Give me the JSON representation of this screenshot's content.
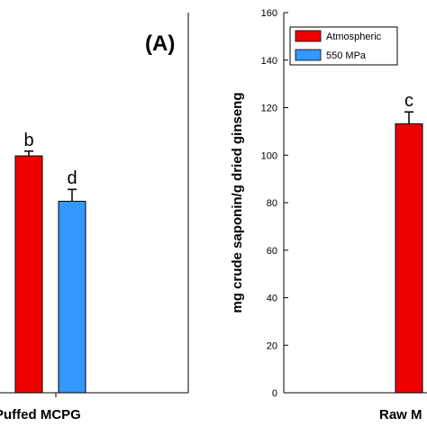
{
  "chart_data": [
    {
      "type": "bar",
      "panel_label": "(A)",
      "categories": [
        "Puffed MCPG"
      ],
      "series": [
        {
          "name": "Atmospheric",
          "color": "#ee0000",
          "values": [
            99.7
          ],
          "errors": [
            2
          ],
          "letters": [
            "b"
          ]
        },
        {
          "name": "550 MPa",
          "color": "#3399ff",
          "values": [
            80.6
          ],
          "errors": [
            5
          ],
          "letters": [
            "d"
          ]
        }
      ],
      "ylim": [
        0,
        160
      ],
      "grid": false
    },
    {
      "type": "bar",
      "categories": [
        "Raw M"
      ],
      "ylabel": "mg crude saponin/g  dried ginseng",
      "yticks": [
        "0",
        "20",
        "40",
        "60",
        "80",
        "100",
        "120",
        "140",
        "160"
      ],
      "ylim": [
        0,
        160
      ],
      "legend": {
        "placement": "top-left",
        "entries": [
          "Atmospheric",
          "550 MPa"
        ]
      },
      "series": [
        {
          "name": "Atmospheric",
          "color": "#ee0000",
          "values": [
            113.2
          ],
          "errors": [
            5
          ],
          "letters": [
            "c"
          ]
        }
      ],
      "grid": false
    }
  ]
}
